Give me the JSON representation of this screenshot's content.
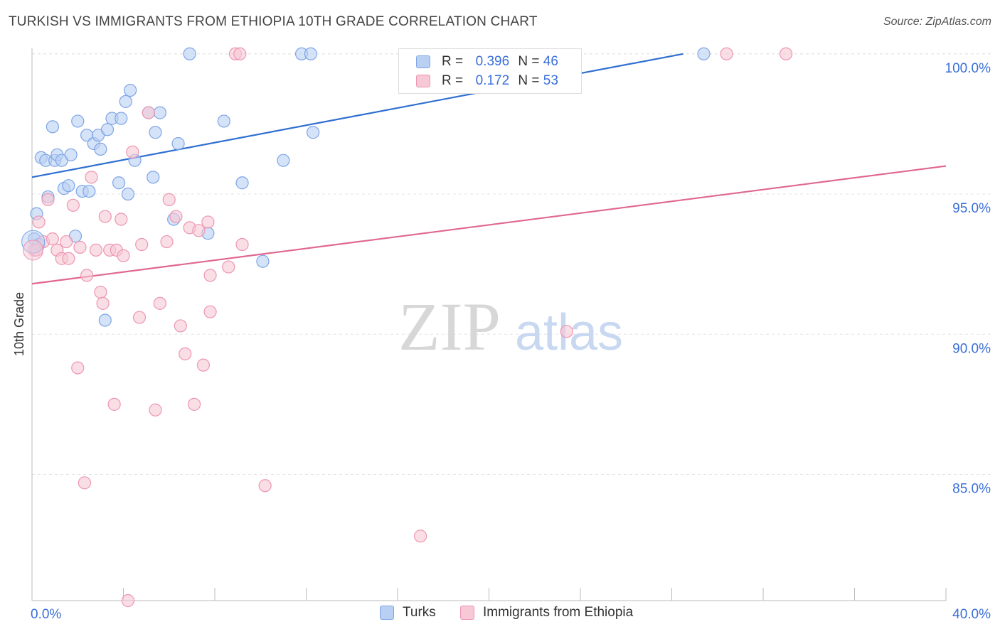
{
  "header": {
    "title": "TURKISH VS IMMIGRANTS FROM ETHIOPIA 10TH GRADE CORRELATION CHART",
    "source": "Source: ZipAtlas.com"
  },
  "watermark": {
    "zip": "ZIP",
    "atlas": "atlas"
  },
  "legend": {
    "r_label": "R =",
    "n_label": "N =",
    "rows": [
      {
        "r": "0.396",
        "n": "46"
      },
      {
        "r": "0.172",
        "n": "53"
      }
    ]
  },
  "colors": {
    "turks_fill": "#b9d0f3",
    "turks_stroke": "#7ea5e6",
    "turks_line": "#2f6fd0",
    "eth_fill": "#f7c8d6",
    "eth_stroke": "#ec96b2",
    "eth_line": "#e06690",
    "axis_label": "#3a6fd8"
  },
  "chart_data": {
    "type": "scatter",
    "title": "TURKISH VS IMMIGRANTS FROM ETHIOPIA 10TH GRADE CORRELATION CHART",
    "xlabel": "",
    "ylabel": "10th Grade",
    "xlim": [
      0,
      40
    ],
    "ylim": [
      80.5,
      100.4
    ],
    "x_tick_labels": [
      "0.0%",
      "40.0%"
    ],
    "y_ticks": [
      85,
      90,
      95,
      100
    ],
    "y_tick_labels": [
      "85.0%",
      "90.0%",
      "95.0%",
      "100.0%"
    ],
    "grid": true,
    "series": [
      {
        "name": "Turks",
        "r": 0.396,
        "n": 46,
        "trend": {
          "x": [
            0,
            28.5
          ],
          "y": [
            95.6,
            100.0
          ]
        },
        "points": [
          [
            0.2,
            94.3
          ],
          [
            0.1,
            93.4
          ],
          [
            0.4,
            96.3
          ],
          [
            0.6,
            96.2
          ],
          [
            0.7,
            94.9
          ],
          [
            0.9,
            97.4
          ],
          [
            1.0,
            96.2
          ],
          [
            1.1,
            96.4
          ],
          [
            1.3,
            96.2
          ],
          [
            1.4,
            95.2
          ],
          [
            1.6,
            95.3
          ],
          [
            1.7,
            96.4
          ],
          [
            1.9,
            93.5
          ],
          [
            2.0,
            97.6
          ],
          [
            2.2,
            95.1
          ],
          [
            2.4,
            97.1
          ],
          [
            2.5,
            95.1
          ],
          [
            2.7,
            96.8
          ],
          [
            2.9,
            97.1
          ],
          [
            3.0,
            96.6
          ],
          [
            3.3,
            97.3
          ],
          [
            3.5,
            97.7
          ],
          [
            3.8,
            95.4
          ],
          [
            3.9,
            97.7
          ],
          [
            4.1,
            98.3
          ],
          [
            4.2,
            95.0
          ],
          [
            4.3,
            98.7
          ],
          [
            4.5,
            96.2
          ],
          [
            5.1,
            97.9
          ],
          [
            5.3,
            95.6
          ],
          [
            5.4,
            97.2
          ],
          [
            5.6,
            97.9
          ],
          [
            6.2,
            94.1
          ],
          [
            6.4,
            96.8
          ],
          [
            6.9,
            100.0
          ],
          [
            7.7,
            93.6
          ],
          [
            8.4,
            97.6
          ],
          [
            9.2,
            95.4
          ],
          [
            10.1,
            92.6
          ],
          [
            11.0,
            96.2
          ],
          [
            11.8,
            100.0
          ],
          [
            12.2,
            100.0
          ],
          [
            12.3,
            97.2
          ],
          [
            29.4,
            100.0
          ],
          [
            3.2,
            90.5
          ],
          [
            0.3,
            93.2
          ]
        ]
      },
      {
        "name": "Immigrants from Ethiopia",
        "r": 0.172,
        "n": 53,
        "trend": {
          "x": [
            0,
            40
          ],
          "y": [
            91.8,
            96.0
          ]
        },
        "points": [
          [
            0.1,
            93.0
          ],
          [
            0.3,
            94.0
          ],
          [
            0.5,
            93.3
          ],
          [
            0.7,
            94.8
          ],
          [
            0.9,
            93.4
          ],
          [
            1.1,
            93.0
          ],
          [
            1.3,
            92.7
          ],
          [
            1.5,
            93.3
          ],
          [
            1.6,
            92.7
          ],
          [
            1.8,
            94.6
          ],
          [
            2.0,
            88.8
          ],
          [
            2.1,
            93.1
          ],
          [
            2.3,
            84.7
          ],
          [
            2.4,
            92.1
          ],
          [
            2.6,
            95.6
          ],
          [
            2.8,
            93.0
          ],
          [
            3.0,
            91.5
          ],
          [
            3.1,
            91.1
          ],
          [
            3.2,
            94.2
          ],
          [
            3.4,
            93.0
          ],
          [
            3.6,
            87.5
          ],
          [
            3.7,
            93.0
          ],
          [
            3.9,
            94.1
          ],
          [
            4.0,
            92.8
          ],
          [
            4.2,
            80.5
          ],
          [
            4.4,
            96.5
          ],
          [
            4.7,
            90.6
          ],
          [
            4.8,
            93.2
          ],
          [
            5.1,
            97.9
          ],
          [
            5.4,
            87.3
          ],
          [
            5.6,
            91.1
          ],
          [
            5.9,
            93.3
          ],
          [
            6.0,
            94.8
          ],
          [
            6.3,
            94.2
          ],
          [
            6.5,
            90.3
          ],
          [
            6.7,
            89.3
          ],
          [
            6.9,
            93.8
          ],
          [
            7.1,
            87.5
          ],
          [
            7.3,
            93.7
          ],
          [
            7.5,
            88.9
          ],
          [
            7.7,
            94.0
          ],
          [
            7.8,
            92.1
          ],
          [
            7.8,
            90.8
          ],
          [
            8.6,
            92.4
          ],
          [
            8.9,
            100.0
          ],
          [
            9.1,
            100.0
          ],
          [
            9.2,
            93.2
          ],
          [
            10.2,
            84.6
          ],
          [
            17.0,
            82.8
          ],
          [
            23.4,
            90.1
          ],
          [
            30.4,
            100.0
          ],
          [
            33.0,
            100.0
          ],
          [
            0.2,
            93.0
          ]
        ]
      }
    ]
  },
  "bottom_legend": {
    "turks": "Turks",
    "ethiopia": "Immigrants from Ethiopia"
  }
}
